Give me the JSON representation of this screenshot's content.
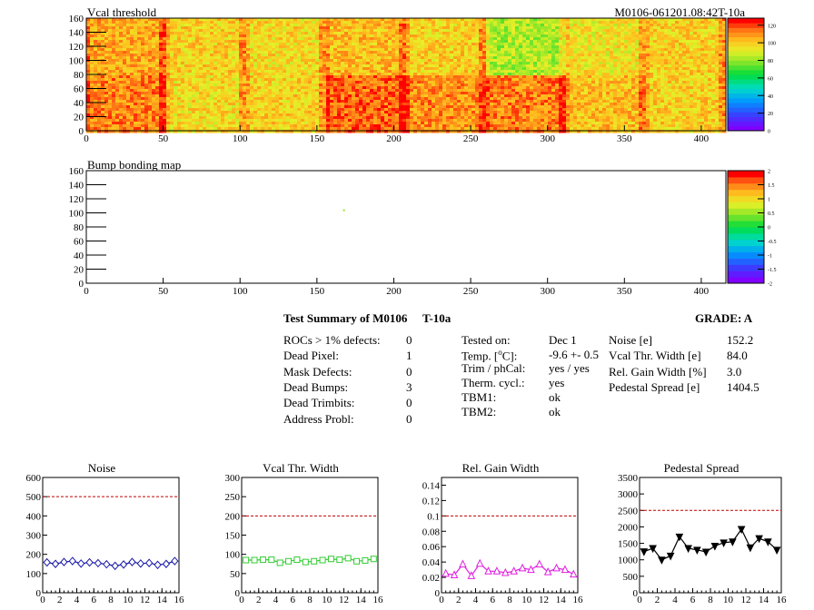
{
  "header": {
    "left_title": "Vcal threshold",
    "right_title": "M0106-061201.08:42T-10a"
  },
  "chart_data": [
    {
      "type": "heatmap",
      "name": "Vcal threshold",
      "title": "Vcal threshold",
      "xlim": [
        0,
        416
      ],
      "ylim": [
        0,
        160
      ],
      "x_ticks": [
        0,
        50,
        100,
        150,
        200,
        250,
        300,
        350,
        400
      ],
      "y_ticks": [
        0,
        20,
        40,
        60,
        80,
        100,
        120,
        140,
        160
      ],
      "zlim": [
        0,
        128
      ],
      "z_ticks": [
        "0",
        "20",
        "40",
        "60",
        "80",
        "100",
        "120"
      ],
      "roc_grid": {
        "columns": 8,
        "rows": 2,
        "mean_value_top_row": [
          108,
          100,
          98,
          104,
          100,
          84,
          96,
          100
        ],
        "mean_value_bottom_row": [
          114,
          98,
          100,
          118,
          112,
          114,
          104,
          100
        ]
      }
    },
    {
      "type": "heatmap",
      "name": "Bump bonding map",
      "title": "Bump bonding map",
      "xlim": [
        0,
        416
      ],
      "ylim": [
        0,
        160
      ],
      "x_ticks": [
        0,
        50,
        100,
        150,
        200,
        250,
        300,
        350,
        400
      ],
      "y_ticks": [
        0,
        20,
        40,
        60,
        80,
        100,
        120,
        140,
        160
      ],
      "zlim": [
        -2,
        2
      ],
      "z_ticks": [
        "2",
        "1.5",
        "1",
        "0.5",
        "0",
        "-0.5",
        "-1",
        "-1.5",
        "-2"
      ],
      "points": [
        {
          "x": 167,
          "y": 105,
          "value": 0.5
        }
      ]
    },
    {
      "type": "line",
      "title": "Noise",
      "xlim": [
        0,
        16
      ],
      "ylim": [
        0,
        600
      ],
      "x_ticks": [
        0,
        2,
        4,
        6,
        8,
        10,
        12,
        14,
        16
      ],
      "y_ticks": [
        0,
        100,
        200,
        300,
        400,
        500,
        600
      ],
      "reference_line": 500,
      "x": [
        0.5,
        1.5,
        2.5,
        3.5,
        4.5,
        5.5,
        6.5,
        7.5,
        8.5,
        9.5,
        10.5,
        11.5,
        12.5,
        13.5,
        14.5,
        15.5
      ],
      "values": [
        158,
        150,
        160,
        165,
        152,
        158,
        154,
        148,
        140,
        147,
        160,
        152,
        155,
        145,
        150,
        165
      ],
      "color": "#1a1aa8",
      "marker": "diamond"
    },
    {
      "type": "line",
      "title": "Vcal Thr. Width",
      "xlim": [
        0,
        16
      ],
      "ylim": [
        0,
        300
      ],
      "x_ticks": [
        0,
        2,
        4,
        6,
        8,
        10,
        12,
        14,
        16
      ],
      "y_ticks": [
        0,
        50,
        100,
        150,
        200,
        250,
        300
      ],
      "reference_line": 200,
      "x": [
        0.5,
        1.5,
        2.5,
        3.5,
        4.5,
        5.5,
        6.5,
        7.5,
        8.5,
        9.5,
        10.5,
        11.5,
        12.5,
        13.5,
        14.5,
        15.5
      ],
      "values": [
        85,
        85,
        86,
        86,
        78,
        82,
        86,
        80,
        82,
        85,
        88,
        86,
        90,
        82,
        84,
        88
      ],
      "color": "#33cc33",
      "marker": "square"
    },
    {
      "type": "line",
      "title": "Rel. Gain Width",
      "xlim": [
        0,
        16
      ],
      "ylim": [
        0,
        0.15
      ],
      "x_ticks": [
        0,
        2,
        4,
        6,
        8,
        10,
        12,
        14,
        16
      ],
      "y_ticks": [
        "0",
        "0.02",
        "0.04",
        "0.06",
        "0.08",
        "0.1",
        "0.12",
        "0.14"
      ],
      "reference_line": 0.1,
      "x": [
        0.5,
        1.5,
        2.5,
        3.5,
        4.5,
        5.5,
        6.5,
        7.5,
        8.5,
        9.5,
        10.5,
        11.5,
        12.5,
        13.5,
        14.5,
        15.5
      ],
      "values": [
        0.025,
        0.023,
        0.037,
        0.022,
        0.038,
        0.028,
        0.028,
        0.026,
        0.028,
        0.032,
        0.03,
        0.037,
        0.027,
        0.032,
        0.03,
        0.024
      ],
      "color": "#e01ee0",
      "marker": "triangle"
    },
    {
      "type": "line",
      "title": "Pedestal Spread",
      "xlim": [
        0,
        16
      ],
      "ylim": [
        0,
        3500
      ],
      "x_ticks": [
        0,
        2,
        4,
        6,
        8,
        10,
        12,
        14,
        16
      ],
      "y_ticks": [
        0,
        500,
        1000,
        1500,
        2000,
        2500,
        3000,
        3500
      ],
      "reference_line": 2500,
      "x": [
        0.5,
        1.5,
        2.5,
        3.5,
        4.5,
        5.5,
        6.5,
        7.5,
        8.5,
        9.5,
        10.5,
        11.5,
        12.5,
        13.5,
        14.5,
        15.5
      ],
      "values": [
        1250,
        1350,
        1000,
        1120,
        1700,
        1350,
        1300,
        1240,
        1420,
        1520,
        1550,
        1930,
        1370,
        1650,
        1550,
        1300
      ],
      "color": "#000000",
      "marker": "triangle-down"
    }
  ],
  "bump_title": "Bump bonding map",
  "summary": {
    "title_left": "Test Summary of M0106",
    "title_mid": "T-10a",
    "grade": "GRADE:  A",
    "defects": [
      {
        "label": "ROCs > 1% defects:",
        "value": "0"
      },
      {
        "label": "Dead Pixel:",
        "value": "1"
      },
      {
        "label": "Mask Defects:",
        "value": "0"
      },
      {
        "label": "Dead Bumps:",
        "value": "3"
      },
      {
        "label": "Dead Trimbits:",
        "value": "0"
      },
      {
        "label": "Address Probl:",
        "value": "0"
      }
    ],
    "conditions": [
      {
        "label": "Tested on:",
        "value": "Dec 1"
      },
      {
        "label_pre": "Temp. [",
        "label_sup": "o",
        "label_post": "C]:",
        "value": "-9.6 +- 0.5"
      },
      {
        "label": "Trim / phCal:",
        "value": "yes / yes"
      },
      {
        "label": "Therm. cycl.:",
        "value": "yes"
      },
      {
        "label": "TBM1:",
        "value": "ok"
      },
      {
        "label": "TBM2:",
        "value": "ok"
      }
    ],
    "widths": [
      {
        "label": "Noise [e]",
        "value": "152.2"
      },
      {
        "label": "Vcal Thr. Width [e]",
        "value": "84.0"
      },
      {
        "label": "Rel. Gain Width [%]",
        "value": "3.0"
      },
      {
        "label": "Pedestal Spread [e]",
        "value": "1404.5"
      }
    ]
  }
}
